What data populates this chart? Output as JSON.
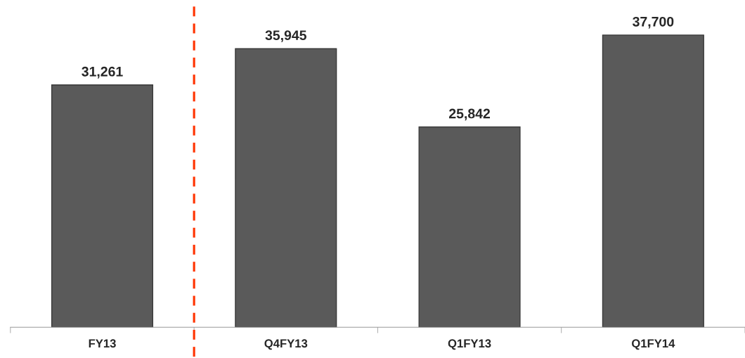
{
  "chart_data": {
    "type": "bar",
    "categories": [
      "FY13",
      "Q4FY13",
      "Q1FY13",
      "Q1FY14"
    ],
    "values": [
      31261,
      35945,
      25842,
      37700
    ],
    "color": "#5a5a5a",
    "data_labels": true,
    "value_labels": [
      "31,261",
      "35,945",
      "25,842",
      "37,700"
    ],
    "grid": false,
    "legend": false
  }
}
